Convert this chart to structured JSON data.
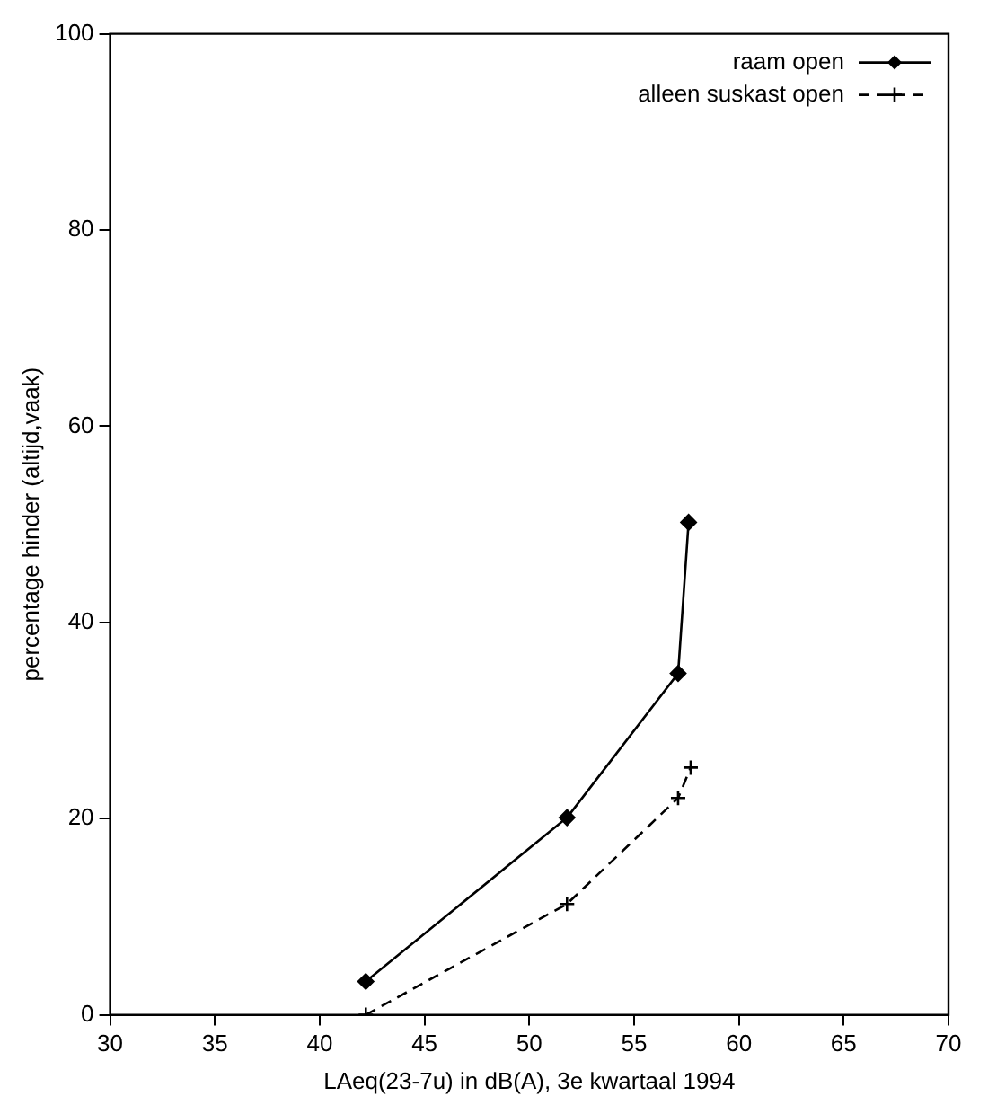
{
  "chart_data": {
    "type": "line",
    "xlabel": "LAeq(23-7u) in dB(A), 3e kwartaal 1994",
    "ylabel": "percentage hinder (altijd,vaak)",
    "xlim": [
      30,
      70
    ],
    "xticks": [
      30,
      35,
      40,
      45,
      50,
      55,
      60,
      65,
      70
    ],
    "ylim": [
      0,
      100
    ],
    "yticks": [
      0,
      20,
      40,
      60,
      80,
      100
    ],
    "grid": false,
    "legend": "top right",
    "series": [
      {
        "name": "raam open",
        "color": "#000000",
        "marker": "diamond",
        "line_style": "solid",
        "x": [
          42.2,
          51.8,
          57.1,
          57.6
        ],
        "values": [
          3.4,
          20.1,
          34.8,
          50.2
        ]
      },
      {
        "name": "alleen suskast open",
        "color": "#000000",
        "marker": "cross",
        "line_style": "dashed",
        "x": [
          42.2,
          51.8,
          57.1,
          57.7
        ],
        "values": [
          0,
          11.3,
          22.1,
          25.2
        ]
      }
    ]
  }
}
